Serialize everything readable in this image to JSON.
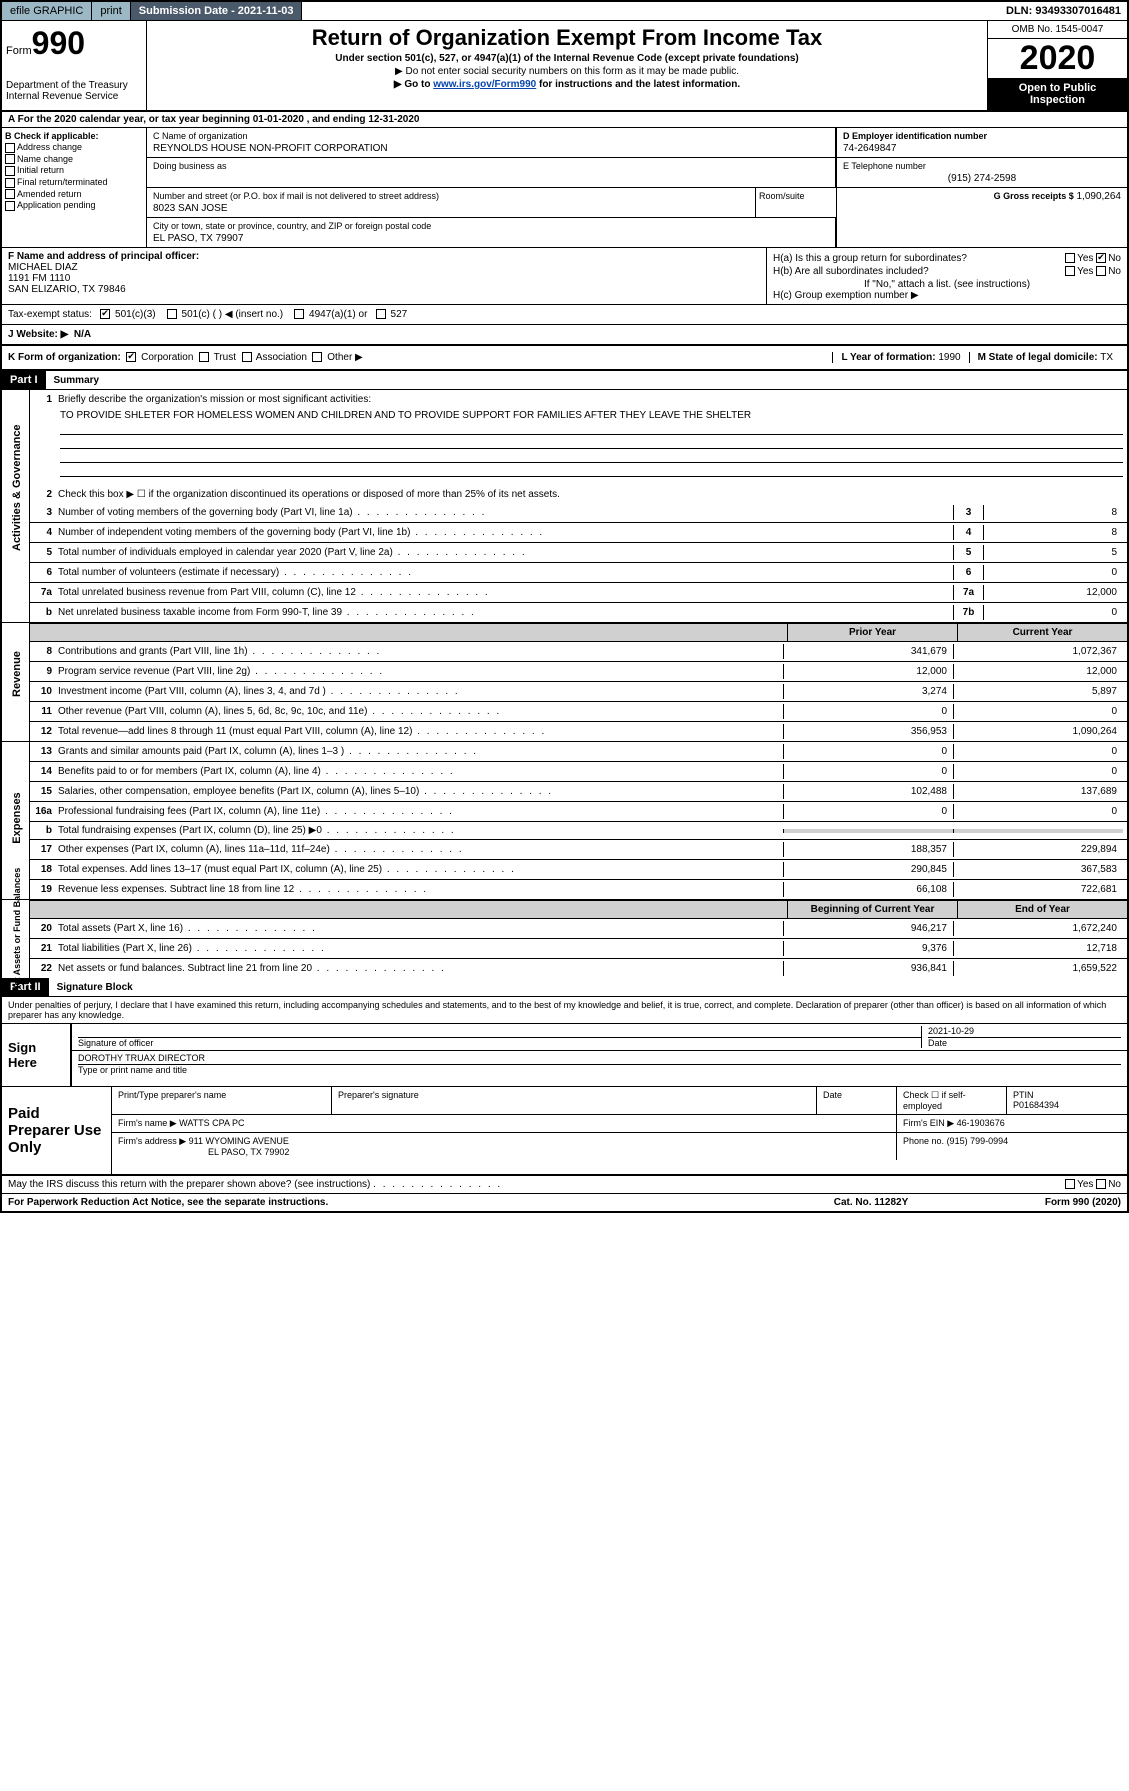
{
  "topbar": {
    "efile": "efile GRAPHIC",
    "print": "print",
    "subdate_label": "Submission Date - ",
    "subdate": "2021-11-03",
    "dln": "DLN: 93493307016481"
  },
  "header": {
    "form_prefix": "Form",
    "form_num": "990",
    "dept": "Department of the Treasury\nInternal Revenue Service",
    "title": "Return of Organization Exempt From Income Tax",
    "subtitle": "Under section 501(c), 527, or 4947(a)(1) of the Internal Revenue Code (except private foundations)",
    "note1": "▶ Do not enter social security numbers on this form as it may be made public.",
    "note2_pre": "▶ Go to ",
    "note2_link": "www.irs.gov/Form990",
    "note2_post": " for instructions and the latest information.",
    "omb": "OMB No. 1545-0047",
    "year": "2020",
    "open": "Open to Public Inspection"
  },
  "row_a": "A For the 2020 calendar year, or tax year beginning 01-01-2020    , and ending 12-31-2020",
  "col_b": {
    "label": "B Check if applicable:",
    "items": [
      "Address change",
      "Name change",
      "Initial return",
      "Final return/terminated",
      "Amended return",
      "Application pending"
    ]
  },
  "col_c": {
    "name_label": "C Name of organization",
    "name": "REYNOLDS HOUSE NON-PROFIT CORPORATION",
    "dba_label": "Doing business as",
    "addr_label": "Number and street (or P.O. box if mail is not delivered to street address)",
    "room_label": "Room/suite",
    "addr": "8023 SAN JOSE",
    "city_label": "City or town, state or province, country, and ZIP or foreign postal code",
    "city": "EL PASO, TX  79907"
  },
  "col_d": {
    "ein_label": "D Employer identification number",
    "ein": "74-2649847",
    "tel_label": "E Telephone number",
    "tel": "(915) 274-2598",
    "gross_label": "G Gross receipts $",
    "gross": "1,090,264"
  },
  "col_f": {
    "label": "F  Name and address of principal officer:",
    "name": "MICHAEL DIAZ",
    "addr1": "1191 FM 1110",
    "addr2": "SAN ELIZARIO, TX  79846"
  },
  "col_h": {
    "a": "H(a)  Is this a group return for subordinates?",
    "b": "H(b)  Are all subordinates included?",
    "b_note": "If \"No,\" attach a list. (see instructions)",
    "c": "H(c)  Group exemption number ▶"
  },
  "tax_status": {
    "label": "Tax-exempt status:",
    "opts": [
      "501(c)(3)",
      "501(c) (   ) ◀ (insert no.)",
      "4947(a)(1) or",
      "527"
    ]
  },
  "website": {
    "label": "J  Website: ▶",
    "val": "N/A"
  },
  "row_k": {
    "label": "K Form of organization:",
    "opts": [
      "Corporation",
      "Trust",
      "Association",
      "Other ▶"
    ],
    "l_label": "L Year of formation:",
    "l_val": "1990",
    "m_label": "M State of legal domicile:",
    "m_val": "TX"
  },
  "part1": {
    "hdr": "Part I",
    "title": "Summary"
  },
  "governance": {
    "side": "Activities & Governance",
    "line1_label": "Briefly describe the organization's mission or most significant activities:",
    "mission": "TO PROVIDE SHLETER FOR HOMELESS WOMEN AND CHILDREN AND TO PROVIDE SUPPORT FOR FAMILIES AFTER THEY LEAVE THE SHELTER",
    "line2": "Check this box ▶ ☐  if the organization discontinued its operations or disposed of more than 25% of its net assets.",
    "lines": [
      {
        "n": "3",
        "t": "Number of voting members of the governing body (Part VI, line 1a)",
        "box": "3",
        "v": "8"
      },
      {
        "n": "4",
        "t": "Number of independent voting members of the governing body (Part VI, line 1b)",
        "box": "4",
        "v": "8"
      },
      {
        "n": "5",
        "t": "Total number of individuals employed in calendar year 2020 (Part V, line 2a)",
        "box": "5",
        "v": "5"
      },
      {
        "n": "6",
        "t": "Total number of volunteers (estimate if necessary)",
        "box": "6",
        "v": "0"
      },
      {
        "n": "7a",
        "t": "Total unrelated business revenue from Part VIII, column (C), line 12",
        "box": "7a",
        "v": "12,000"
      },
      {
        "n": "b",
        "t": "Net unrelated business taxable income from Form 990-T, line 39",
        "box": "7b",
        "v": "0"
      }
    ]
  },
  "col_headers": {
    "prior": "Prior Year",
    "current": "Current Year"
  },
  "revenue": {
    "side": "Revenue",
    "lines": [
      {
        "n": "8",
        "t": "Contributions and grants (Part VIII, line 1h)",
        "p": "341,679",
        "c": "1,072,367"
      },
      {
        "n": "9",
        "t": "Program service revenue (Part VIII, line 2g)",
        "p": "12,000",
        "c": "12,000"
      },
      {
        "n": "10",
        "t": "Investment income (Part VIII, column (A), lines 3, 4, and 7d )",
        "p": "3,274",
        "c": "5,897"
      },
      {
        "n": "11",
        "t": "Other revenue (Part VIII, column (A), lines 5, 6d, 8c, 9c, 10c, and 11e)",
        "p": "0",
        "c": "0"
      },
      {
        "n": "12",
        "t": "Total revenue—add lines 8 through 11 (must equal Part VIII, column (A), line 12)",
        "p": "356,953",
        "c": "1,090,264"
      }
    ]
  },
  "expenses": {
    "side": "Expenses",
    "lines": [
      {
        "n": "13",
        "t": "Grants and similar amounts paid (Part IX, column (A), lines 1–3 )",
        "p": "0",
        "c": "0"
      },
      {
        "n": "14",
        "t": "Benefits paid to or for members (Part IX, column (A), line 4)",
        "p": "0",
        "c": "0"
      },
      {
        "n": "15",
        "t": "Salaries, other compensation, employee benefits (Part IX, column (A), lines 5–10)",
        "p": "102,488",
        "c": "137,689"
      },
      {
        "n": "16a",
        "t": "Professional fundraising fees (Part IX, column (A), line 11e)",
        "p": "0",
        "c": "0"
      },
      {
        "n": "b",
        "t": "Total fundraising expenses (Part IX, column (D), line 25) ▶0",
        "p": "",
        "c": ""
      },
      {
        "n": "17",
        "t": "Other expenses (Part IX, column (A), lines 11a–11d, 11f–24e)",
        "p": "188,357",
        "c": "229,894"
      },
      {
        "n": "18",
        "t": "Total expenses. Add lines 13–17 (must equal Part IX, column (A), line 25)",
        "p": "290,845",
        "c": "367,583"
      },
      {
        "n": "19",
        "t": "Revenue less expenses. Subtract line 18 from line 12",
        "p": "66,108",
        "c": "722,681"
      }
    ]
  },
  "netassets": {
    "side": "Net Assets or Fund Balances",
    "hdr_begin": "Beginning of Current Year",
    "hdr_end": "End of Year",
    "lines": [
      {
        "n": "20",
        "t": "Total assets (Part X, line 16)",
        "p": "946,217",
        "c": "1,672,240"
      },
      {
        "n": "21",
        "t": "Total liabilities (Part X, line 26)",
        "p": "9,376",
        "c": "12,718"
      },
      {
        "n": "22",
        "t": "Net assets or fund balances. Subtract line 21 from line 20",
        "p": "936,841",
        "c": "1,659,522"
      }
    ]
  },
  "part2": {
    "hdr": "Part II",
    "title": "Signature Block"
  },
  "sig": {
    "text": "Under penalties of perjury, I declare that I have examined this return, including accompanying schedules and statements, and to the best of my knowledge and belief, it is true, correct, and complete. Declaration of preparer (other than officer) is based on all information of which preparer has any knowledge.",
    "sign_here": "Sign Here",
    "sig_label": "Signature of officer",
    "date": "2021-10-29",
    "date_label": "Date",
    "name": "DOROTHY TRUAX  DIRECTOR",
    "name_label": "Type or print name and title"
  },
  "paid": {
    "label": "Paid Preparer Use Only",
    "prep_name_label": "Print/Type preparer's name",
    "prep_sig_label": "Preparer's signature",
    "date_label": "Date",
    "check_label": "Check ☐ if self-employed",
    "ptin_label": "PTIN",
    "ptin": "P01684394",
    "firm_name_label": "Firm's name     ▶",
    "firm_name": "WATTS CPA PC",
    "firm_ein_label": "Firm's EIN ▶",
    "firm_ein": "46-1903676",
    "firm_addr_label": "Firm's address ▶",
    "firm_addr": "911 WYOMING AVENUE",
    "firm_city": "EL PASO, TX  79902",
    "phone_label": "Phone no.",
    "phone": "(915) 799-0994"
  },
  "footer": {
    "discuss": "May the IRS discuss this return with the preparer shown above? (see instructions)",
    "paperwork": "For Paperwork Reduction Act Notice, see the separate instructions.",
    "cat": "Cat. No. 11282Y",
    "form": "Form 990 (2020)"
  }
}
